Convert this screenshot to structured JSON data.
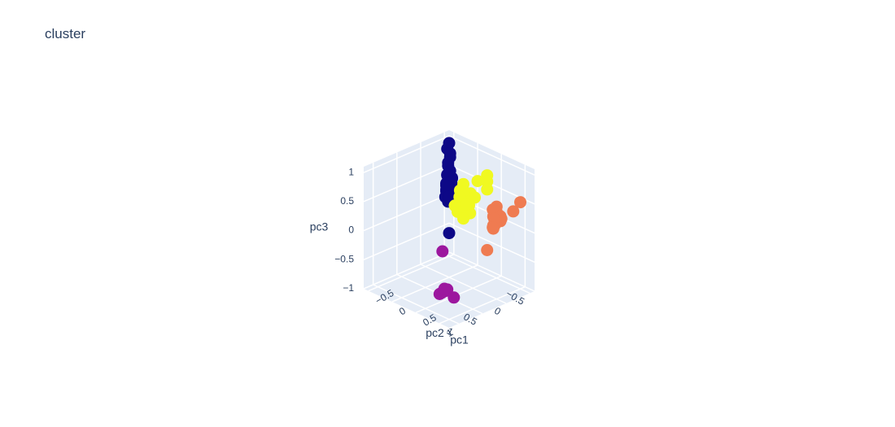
{
  "title": "cluster",
  "chart_data": {
    "type": "scatter",
    "projection": "3d",
    "title": "cluster",
    "axes": {
      "x": {
        "label": "pc1",
        "range": [
          -0.6,
          1.2
        ],
        "ticks": [
          -0.5,
          0,
          0.5,
          1
        ],
        "tick_labels": [
          "−0.5",
          "0",
          "0.5",
          "1"
        ]
      },
      "y": {
        "label": "pc2",
        "range": [
          -0.6,
          1.2
        ],
        "ticks": [
          -0.5,
          0,
          0.5,
          1
        ],
        "tick_labels": [
          "−0.5",
          "0",
          "0.5",
          "1"
        ]
      },
      "z": {
        "label": "pc3",
        "range": [
          -1,
          1.1
        ],
        "ticks": [
          -1,
          -0.5,
          0,
          0.5,
          1
        ],
        "tick_labels": [
          "−1",
          "−0.5",
          "0",
          "0.5",
          "1"
        ]
      }
    },
    "grid": true,
    "legend": "none",
    "series": [
      {
        "color": "#0d0887",
        "points": [
          [
            -0.5,
            -0.5,
            0.95
          ],
          [
            -0.52,
            -0.48,
            0.85
          ],
          [
            -0.48,
            -0.5,
            0.78
          ],
          [
            -0.5,
            -0.52,
            0.7
          ],
          [
            -0.5,
            -0.48,
            0.62
          ],
          [
            -0.52,
            -0.5,
            0.55
          ],
          [
            -0.48,
            -0.5,
            0.48
          ],
          [
            -0.5,
            -0.46,
            0.42
          ],
          [
            -0.54,
            -0.5,
            0.38
          ],
          [
            -0.5,
            -0.54,
            0.34
          ],
          [
            -0.46,
            -0.5,
            0.3
          ],
          [
            -0.52,
            -0.46,
            0.26
          ],
          [
            -0.48,
            -0.54,
            0.22
          ],
          [
            -0.5,
            -0.5,
            0.18
          ],
          [
            -0.54,
            -0.48,
            0.14
          ],
          [
            -0.46,
            -0.48,
            0.12
          ],
          [
            -0.5,
            -0.52,
            0.08
          ],
          [
            -0.52,
            -0.5,
            0.04
          ],
          [
            -0.48,
            -0.46,
            0.0
          ],
          [
            -0.5,
            -0.5,
            -0.04
          ],
          [
            -0.54,
            -0.52,
            -0.08
          ],
          [
            -0.46,
            -0.52,
            0.36
          ],
          [
            -0.52,
            -0.54,
            0.28
          ],
          [
            -0.48,
            -0.48,
            0.2
          ],
          [
            -0.44,
            -0.5,
            0.16
          ],
          [
            -0.56,
            -0.5,
            0.1
          ],
          [
            -0.5,
            -0.44,
            0.24
          ],
          [
            -0.5,
            -0.56,
            0.32
          ],
          [
            -0.46,
            -0.46,
            0.06
          ],
          [
            -0.54,
            -0.46,
            0.02
          ],
          [
            -0.5,
            -0.5,
            -0.6
          ]
        ]
      },
      {
        "color": "#9c179e",
        "points": [
          [
            0.35,
            0.45,
            -0.95
          ],
          [
            0.32,
            0.48,
            -0.98
          ],
          [
            0.38,
            0.42,
            -0.92
          ],
          [
            0.3,
            0.5,
            -1.0
          ],
          [
            0.36,
            0.46,
            -0.9
          ],
          [
            0.34,
            0.44,
            -0.96
          ],
          [
            0.5,
            0.4,
            -1.02
          ],
          [
            0.28,
            0.42,
            -0.3
          ]
        ]
      },
      {
        "color": "#f0f921",
        "points": [
          [
            0.0,
            -0.3,
            0.5
          ],
          [
            0.05,
            -0.25,
            0.42
          ],
          [
            -0.05,
            -0.28,
            0.38
          ],
          [
            0.1,
            -0.35,
            0.36
          ],
          [
            0.02,
            -0.2,
            0.32
          ],
          [
            -0.08,
            -0.32,
            0.28
          ],
          [
            0.06,
            -0.3,
            0.25
          ],
          [
            0.12,
            -0.24,
            0.22
          ],
          [
            -0.02,
            -0.26,
            0.18
          ],
          [
            0.08,
            -0.34,
            0.15
          ],
          [
            -0.1,
            -0.22,
            0.12
          ],
          [
            0.04,
            -0.28,
            0.08
          ],
          [
            0.14,
            -0.3,
            0.05
          ],
          [
            -0.06,
            -0.24,
            0.02
          ],
          [
            0.1,
            -0.2,
            -0.02
          ],
          [
            0.0,
            -0.32,
            0.2
          ],
          [
            0.16,
            -0.38,
            0.3
          ],
          [
            -0.12,
            -0.3,
            0.06
          ],
          [
            0.2,
            -0.6,
            0.62
          ],
          [
            0.25,
            -0.55,
            0.55
          ],
          [
            0.1,
            -0.5,
            0.52
          ],
          [
            0.3,
            -0.5,
            0.45
          ]
        ]
      },
      {
        "color": "#ef7b51",
        "points": [
          [
            0.6,
            -0.4,
            0.3
          ],
          [
            0.62,
            -0.35,
            0.25
          ],
          [
            0.58,
            -0.42,
            0.2
          ],
          [
            0.65,
            -0.3,
            0.15
          ],
          [
            0.55,
            -0.38,
            0.12
          ],
          [
            0.68,
            -0.4,
            0.08
          ],
          [
            0.6,
            -0.45,
            0.05
          ],
          [
            0.63,
            -0.33,
            0.02
          ],
          [
            0.57,
            -0.36,
            -0.02
          ],
          [
            0.7,
            -0.38,
            0.18
          ],
          [
            0.66,
            -0.44,
            0.1
          ],
          [
            0.52,
            -0.4,
            0.22
          ],
          [
            0.64,
            -0.28,
            0.0
          ],
          [
            0.59,
            -0.34,
            -0.06
          ],
          [
            0.9,
            -0.6,
            0.42
          ],
          [
            0.95,
            -0.4,
            0.35
          ],
          [
            0.5,
            -0.3,
            -0.45
          ]
        ]
      }
    ]
  }
}
